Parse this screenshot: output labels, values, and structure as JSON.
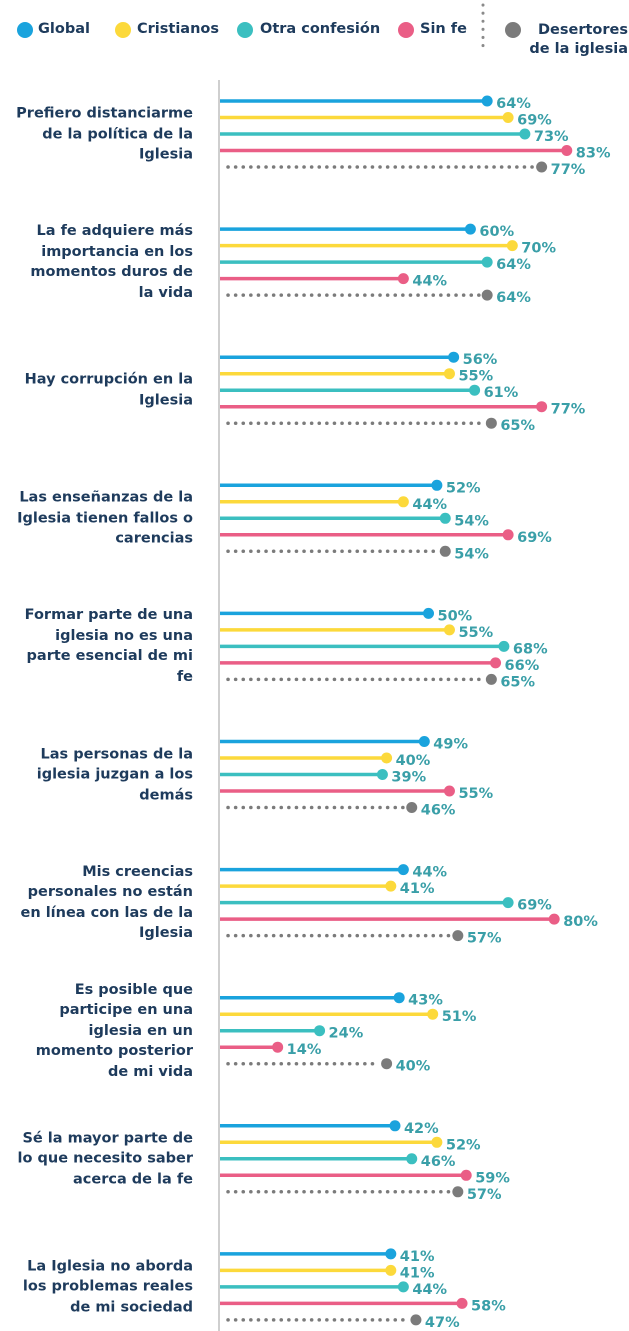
{
  "chart_data": {
    "type": "lollipop",
    "categories": [
      "Prefiero distanciarme de la política de la Iglesia",
      "La fe adquiere más importancia en los momentos duros de la vida",
      "Hay corrupción en la Iglesia",
      "Las enseñanzas de la Iglesia tienen fallos o carencias",
      "Formar parte de una iglesia no es una parte esencial de mi fe",
      "Las personas de la iglesia juzgan a los demás",
      "Mis creencias personales no están en línea con las de la Iglesia",
      "Es posible que participe en una iglesia en un momento posterior de mi vida",
      "Sé la mayor parte de lo que necesito saber acerca de la fe",
      "La Iglesia no aborda los problemas reales de mi sociedad"
    ],
    "xlim": [
      0,
      100
    ],
    "series": [
      {
        "name": "Global",
        "color": "#1aa3dd",
        "values": [
          64,
          60,
          56,
          52,
          50,
          49,
          44,
          43,
          42,
          41
        ],
        "value_labels": [
          "64%",
          "60%",
          "56%",
          "52%",
          "50%",
          "49%",
          "44%",
          "43%",
          "42%",
          "41%"
        ]
      },
      {
        "name": "Cristianos",
        "color": "#fcd93b",
        "values": [
          69,
          70,
          55,
          44,
          55,
          40,
          41,
          51,
          52,
          41
        ],
        "value_labels": [
          "69%",
          "70%",
          "55%",
          "44%",
          "55%",
          "40%",
          "41%",
          "51%",
          "52%",
          "41%"
        ]
      },
      {
        "name": "Otra confesión",
        "color": "#3bbfc0",
        "values": [
          73,
          64,
          61,
          54,
          68,
          39,
          69,
          24,
          46,
          44
        ],
        "value_labels": [
          "73%",
          "64%",
          "61%",
          "54%",
          "68%",
          "39%",
          "69%",
          "24%",
          "46%",
          "44%"
        ]
      },
      {
        "name": "Sin fe",
        "color": "#ea5e86",
        "values": [
          83,
          44,
          77,
          69,
          66,
          55,
          80,
          14,
          59,
          58
        ],
        "value_labels": [
          "83%",
          "44%",
          "77%",
          "69%",
          "66%",
          "55%",
          "80%",
          "14%",
          "59%",
          "58%"
        ]
      },
      {
        "name": "Desertores de la iglesia",
        "color": "#7b7b7b",
        "dotted": true,
        "values": [
          77,
          64,
          65,
          54,
          65,
          46,
          57,
          40,
          57,
          47
        ],
        "value_labels": [
          "77%",
          "64%",
          "65%",
          "54%",
          "65%",
          "46%",
          "57%",
          "40%",
          "57%",
          "47%"
        ]
      }
    ]
  }
}
